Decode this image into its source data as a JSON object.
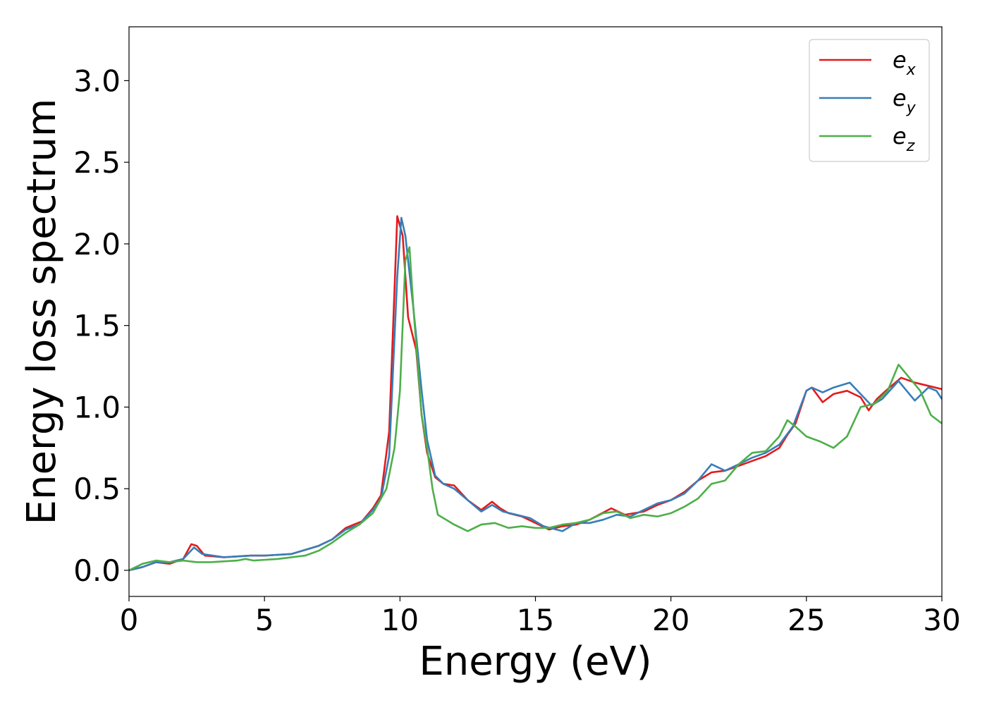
{
  "chart_data": {
    "type": "line",
    "title": "",
    "xlabel": "Energy (eV)",
    "ylabel": "Energy loss spectrum",
    "xlim": [
      0,
      30
    ],
    "ylim": [
      -0.16,
      3.33
    ],
    "xticks": [
      0,
      5,
      10,
      15,
      20,
      25,
      30
    ],
    "xtick_labels": [
      "0",
      "5",
      "10",
      "15",
      "20",
      "25",
      "30"
    ],
    "yticks": [
      0.0,
      0.5,
      1.0,
      1.5,
      2.0,
      2.5,
      3.0
    ],
    "ytick_labels": [
      "0.0",
      "0.5",
      "1.0",
      "1.5",
      "2.0",
      "2.5",
      "3.0"
    ],
    "grid": false,
    "legend_position": "top-right",
    "series": [
      {
        "name": "e_x",
        "label_base": "e",
        "label_sub": "x",
        "color": "#e41a1c",
        "points": [
          [
            0,
            0
          ],
          [
            0.5,
            0.02
          ],
          [
            1,
            0.05
          ],
          [
            1.5,
            0.04
          ],
          [
            2,
            0.07
          ],
          [
            2.3,
            0.16
          ],
          [
            2.5,
            0.15
          ],
          [
            2.8,
            0.09
          ],
          [
            3.5,
            0.08
          ],
          [
            4.5,
            0.09
          ],
          [
            5,
            0.09
          ],
          [
            6,
            0.1
          ],
          [
            7,
            0.15
          ],
          [
            7.5,
            0.19
          ],
          [
            8,
            0.26
          ],
          [
            8.3,
            0.28
          ],
          [
            8.6,
            0.3
          ],
          [
            9,
            0.38
          ],
          [
            9.3,
            0.46
          ],
          [
            9.6,
            0.85
          ],
          [
            9.9,
            2.17
          ],
          [
            10.1,
            2.05
          ],
          [
            10.3,
            1.55
          ],
          [
            10.6,
            1.35
          ],
          [
            10.8,
            0.95
          ],
          [
            11,
            0.72
          ],
          [
            11.3,
            0.57
          ],
          [
            11.6,
            0.53
          ],
          [
            12,
            0.52
          ],
          [
            12.5,
            0.43
          ],
          [
            13,
            0.37
          ],
          [
            13.4,
            0.42
          ],
          [
            13.7,
            0.38
          ],
          [
            14,
            0.35
          ],
          [
            14.5,
            0.33
          ],
          [
            15,
            0.29
          ],
          [
            15.5,
            0.25
          ],
          [
            16,
            0.27
          ],
          [
            16.5,
            0.28
          ],
          [
            17,
            0.31
          ],
          [
            17.8,
            0.38
          ],
          [
            18.3,
            0.34
          ],
          [
            19,
            0.36
          ],
          [
            19.5,
            0.4
          ],
          [
            20,
            0.43
          ],
          [
            20.5,
            0.48
          ],
          [
            21,
            0.55
          ],
          [
            21.5,
            0.6
          ],
          [
            22,
            0.61
          ],
          [
            22.5,
            0.64
          ],
          [
            23,
            0.67
          ],
          [
            23.5,
            0.7
          ],
          [
            24,
            0.75
          ],
          [
            24.3,
            0.83
          ],
          [
            24.6,
            0.9
          ],
          [
            25,
            1.1
          ],
          [
            25.2,
            1.12
          ],
          [
            25.6,
            1.03
          ],
          [
            26,
            1.08
          ],
          [
            26.5,
            1.1
          ],
          [
            27,
            1.06
          ],
          [
            27.3,
            0.98
          ],
          [
            27.6,
            1.05
          ],
          [
            28,
            1.11
          ],
          [
            28.5,
            1.18
          ],
          [
            29,
            1.15
          ],
          [
            29.5,
            1.13
          ],
          [
            30,
            1.11
          ]
        ]
      },
      {
        "name": "e_y",
        "label_base": "e",
        "label_sub": "y",
        "color": "#377eb8",
        "points": [
          [
            0,
            0
          ],
          [
            0.5,
            0.02
          ],
          [
            1,
            0.05
          ],
          [
            1.5,
            0.05
          ],
          [
            2,
            0.07
          ],
          [
            2.4,
            0.14
          ],
          [
            2.7,
            0.1
          ],
          [
            3.5,
            0.08
          ],
          [
            4.5,
            0.09
          ],
          [
            5,
            0.09
          ],
          [
            6,
            0.1
          ],
          [
            7,
            0.15
          ],
          [
            7.5,
            0.19
          ],
          [
            8,
            0.25
          ],
          [
            8.5,
            0.28
          ],
          [
            9,
            0.37
          ],
          [
            9.3,
            0.44
          ],
          [
            9.6,
            0.7
          ],
          [
            9.9,
            1.8
          ],
          [
            10.05,
            2.16
          ],
          [
            10.2,
            2.05
          ],
          [
            10.5,
            1.6
          ],
          [
            10.8,
            1.1
          ],
          [
            11,
            0.8
          ],
          [
            11.3,
            0.58
          ],
          [
            11.6,
            0.53
          ],
          [
            12,
            0.5
          ],
          [
            12.5,
            0.43
          ],
          [
            13,
            0.36
          ],
          [
            13.4,
            0.4
          ],
          [
            13.8,
            0.36
          ],
          [
            14.3,
            0.34
          ],
          [
            14.8,
            0.32
          ],
          [
            15.3,
            0.27
          ],
          [
            16,
            0.24
          ],
          [
            16.5,
            0.29
          ],
          [
            17,
            0.29
          ],
          [
            17.5,
            0.31
          ],
          [
            18,
            0.34
          ],
          [
            18.5,
            0.33
          ],
          [
            19,
            0.37
          ],
          [
            19.5,
            0.41
          ],
          [
            20,
            0.43
          ],
          [
            20.5,
            0.47
          ],
          [
            21,
            0.55
          ],
          [
            21.5,
            0.65
          ],
          [
            22,
            0.61
          ],
          [
            22.5,
            0.65
          ],
          [
            23,
            0.69
          ],
          [
            23.5,
            0.72
          ],
          [
            24,
            0.77
          ],
          [
            24.5,
            0.88
          ],
          [
            25,
            1.1
          ],
          [
            25.2,
            1.12
          ],
          [
            25.6,
            1.09
          ],
          [
            26,
            1.12
          ],
          [
            26.6,
            1.15
          ],
          [
            27,
            1.08
          ],
          [
            27.4,
            1.01
          ],
          [
            27.8,
            1.05
          ],
          [
            28.4,
            1.16
          ],
          [
            29,
            1.04
          ],
          [
            29.5,
            1.12
          ],
          [
            29.8,
            1.1
          ],
          [
            30,
            1.05
          ]
        ]
      },
      {
        "name": "e_z",
        "label_base": "e",
        "label_sub": "z",
        "color": "#4daf4a",
        "points": [
          [
            0,
            0
          ],
          [
            0.5,
            0.04
          ],
          [
            1,
            0.06
          ],
          [
            1.5,
            0.05
          ],
          [
            2,
            0.06
          ],
          [
            2.5,
            0.05
          ],
          [
            3,
            0.05
          ],
          [
            4,
            0.06
          ],
          [
            4.3,
            0.07
          ],
          [
            4.6,
            0.06
          ],
          [
            5.5,
            0.07
          ],
          [
            6.5,
            0.09
          ],
          [
            7,
            0.12
          ],
          [
            7.5,
            0.17
          ],
          [
            8,
            0.23
          ],
          [
            8.5,
            0.28
          ],
          [
            9,
            0.35
          ],
          [
            9.5,
            0.5
          ],
          [
            9.8,
            0.75
          ],
          [
            10,
            1.1
          ],
          [
            10.2,
            1.9
          ],
          [
            10.35,
            1.98
          ],
          [
            10.5,
            1.6
          ],
          [
            10.8,
            0.95
          ],
          [
            11,
            0.75
          ],
          [
            11.2,
            0.5
          ],
          [
            11.4,
            0.34
          ],
          [
            12,
            0.28
          ],
          [
            12.5,
            0.24
          ],
          [
            13,
            0.28
          ],
          [
            13.5,
            0.29
          ],
          [
            14,
            0.26
          ],
          [
            14.5,
            0.27
          ],
          [
            15,
            0.26
          ],
          [
            15.5,
            0.26
          ],
          [
            16,
            0.28
          ],
          [
            16.5,
            0.29
          ],
          [
            17,
            0.31
          ],
          [
            17.5,
            0.35
          ],
          [
            18,
            0.36
          ],
          [
            18.5,
            0.32
          ],
          [
            19,
            0.34
          ],
          [
            19.5,
            0.33
          ],
          [
            20,
            0.35
          ],
          [
            20.5,
            0.39
          ],
          [
            21,
            0.44
          ],
          [
            21.5,
            0.53
          ],
          [
            22,
            0.55
          ],
          [
            22.5,
            0.65
          ],
          [
            23,
            0.72
          ],
          [
            23.5,
            0.73
          ],
          [
            24,
            0.82
          ],
          [
            24.3,
            0.92
          ],
          [
            24.6,
            0.88
          ],
          [
            25,
            0.82
          ],
          [
            25.5,
            0.79
          ],
          [
            26,
            0.75
          ],
          [
            26.5,
            0.82
          ],
          [
            27,
            1.0
          ],
          [
            27.5,
            1.02
          ],
          [
            28,
            1.1
          ],
          [
            28.4,
            1.26
          ],
          [
            28.8,
            1.18
          ],
          [
            29.2,
            1.1
          ],
          [
            29.6,
            0.95
          ],
          [
            30,
            0.9
          ]
        ]
      }
    ]
  }
}
